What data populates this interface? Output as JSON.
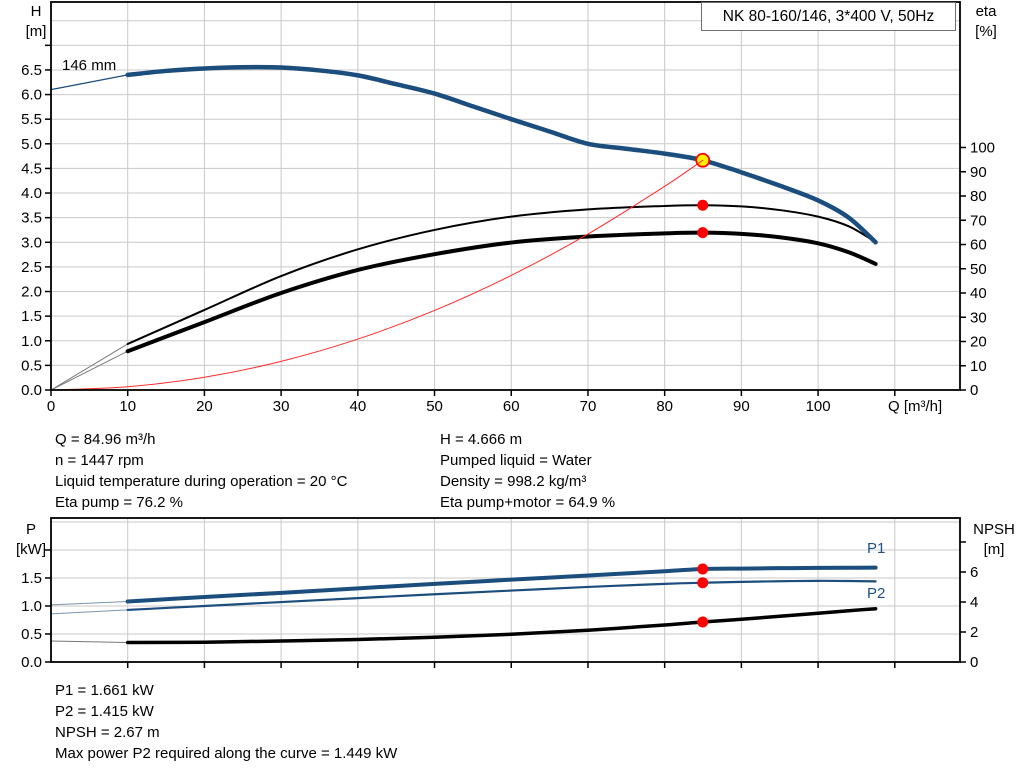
{
  "title_box": {
    "text": "NK 80-160/146, 3*400 V, 50Hz"
  },
  "impeller_label": "146 mm",
  "colors": {
    "curve_blue": "#1b4d7d",
    "label_blue": "#215081",
    "grid": "#c9c9c9",
    "axis": "#000000",
    "red": "#ff0000",
    "yellow": "#ffee00",
    "lead_gray": "#7a7a7a",
    "lead_blue": "#7d93ad"
  },
  "operating_point": {
    "left": [
      "Q = 84.96 m³/h",
      "n = 1447 rpm",
      "Liquid temperature during operation = 20 °C",
      "Eta pump = 76.2 %"
    ],
    "right": [
      "H = 4.666 m",
      "Pumped liquid = Water",
      "Density = 998.2 kg/m³",
      "Eta pump+motor = 64.9 %"
    ]
  },
  "bottom_text": [
    "P1 = 1.661 kW",
    "P2 = 1.415 kW",
    "NPSH = 2.67 m",
    "Max power P2 required along the curve = 1.449 kW"
  ],
  "curve_labels": {
    "p1": "P1",
    "p2": "P2"
  },
  "chart_data": [
    {
      "id": "qh-eta-chart",
      "type": "line",
      "grid": true,
      "x_axis": {
        "label": "Q [m³/h]",
        "min": 0,
        "max": 118.5,
        "ticks": [
          {
            "v": 0,
            "t": "0"
          },
          {
            "v": 10,
            "t": "10"
          },
          {
            "v": 20,
            "t": "20"
          },
          {
            "v": 30,
            "t": "30"
          },
          {
            "v": 40,
            "t": "40"
          },
          {
            "v": 50,
            "t": "50"
          },
          {
            "v": 60,
            "t": "60"
          },
          {
            "v": 70,
            "t": "70"
          },
          {
            "v": 80,
            "t": "80"
          },
          {
            "v": 90,
            "t": "90"
          },
          {
            "v": 100,
            "t": "100"
          },
          {
            "v": 110,
            "t": ""
          }
        ]
      },
      "y_left": {
        "title_lines": [
          "H",
          "[m]"
        ],
        "min": 0,
        "max": 7.88,
        "ticks": [
          {
            "v": 0,
            "t": "0.0"
          },
          {
            "v": 0.5,
            "t": "0.5"
          },
          {
            "v": 1,
            "t": "1.0"
          },
          {
            "v": 1.5,
            "t": "1.5"
          },
          {
            "v": 2,
            "t": "2.0"
          },
          {
            "v": 2.5,
            "t": "2.5"
          },
          {
            "v": 3,
            "t": "3.0"
          },
          {
            "v": 3.5,
            "t": "3.5"
          },
          {
            "v": 4,
            "t": "4.0"
          },
          {
            "v": 4.5,
            "t": "4.5"
          },
          {
            "v": 5,
            "t": "5.0"
          },
          {
            "v": 5.5,
            "t": "5.5"
          },
          {
            "v": 6,
            "t": "6.0"
          },
          {
            "v": 6.5,
            "t": "6.5"
          },
          {
            "v": 7,
            "t": ""
          }
        ],
        "grid": [
          0.5,
          1,
          1.5,
          2,
          2.5,
          3,
          3.5,
          4,
          4.5,
          5,
          5.5,
          6,
          6.5,
          7,
          7.5
        ]
      },
      "y_right": {
        "title_lines": [
          "eta",
          "[%]"
        ],
        "min": 0,
        "max": 160,
        "ticks": [
          {
            "v": 0,
            "t": "0"
          },
          {
            "v": 10,
            "t": "10"
          },
          {
            "v": 20,
            "t": "20"
          },
          {
            "v": 30,
            "t": "30"
          },
          {
            "v": 40,
            "t": "40"
          },
          {
            "v": 50,
            "t": "50"
          },
          {
            "v": 60,
            "t": "60"
          },
          {
            "v": 70,
            "t": "70"
          },
          {
            "v": 80,
            "t": "80"
          },
          {
            "v": 90,
            "t": "90"
          },
          {
            "v": 100,
            "t": "100"
          }
        ]
      },
      "series": [
        {
          "name": "eta-pump-lead",
          "axis": "right",
          "color": "#7a7a7a",
          "width": 1,
          "points": [
            [
              0,
              0
            ],
            [
              10,
              19
            ]
          ]
        },
        {
          "name": "eta-pump-motor-lead",
          "axis": "right",
          "color": "#7a7a7a",
          "width": 1,
          "points": [
            [
              0,
              0
            ],
            [
              10,
              16
            ]
          ]
        },
        {
          "name": "eta-pump-curve",
          "axis": "right",
          "color": "#000000",
          "width": 2,
          "points": [
            [
              10,
              19
            ],
            [
              20,
              33
            ],
            [
              30,
              47
            ],
            [
              40,
              58
            ],
            [
              50,
              66
            ],
            [
              60,
              71.5
            ],
            [
              70,
              74.5
            ],
            [
              80,
              75.9
            ],
            [
              84.96,
              76.2
            ],
            [
              90,
              75.7
            ],
            [
              95,
              74.2
            ],
            [
              100,
              71.5
            ],
            [
              104,
              67.5
            ],
            [
              107.5,
              61
            ]
          ]
        },
        {
          "name": "eta-pump-motor-curve",
          "axis": "right",
          "color": "#000000",
          "width": 4,
          "points": [
            [
              10,
              16
            ],
            [
              20,
              28
            ],
            [
              30,
              40
            ],
            [
              40,
              49.5
            ],
            [
              50,
              56
            ],
            [
              60,
              60.8
            ],
            [
              70,
              63.3
            ],
            [
              80,
              64.6
            ],
            [
              84.96,
              64.9
            ],
            [
              90,
              64.4
            ],
            [
              95,
              63
            ],
            [
              100,
              60.5
            ],
            [
              104,
              56.8
            ],
            [
              107.5,
              52
            ]
          ]
        },
        {
          "name": "head-curve-lead",
          "axis": "left",
          "color": "#1b4d7d",
          "width": 1.2,
          "points": [
            [
              0,
              6.1
            ],
            [
              10,
              6.4
            ]
          ]
        },
        {
          "name": "head-curve",
          "axis": "left",
          "color": "#1b4d7d",
          "width": 4.5,
          "points": [
            [
              10,
              6.4
            ],
            [
              15,
              6.48
            ],
            [
              20,
              6.53
            ],
            [
              25,
              6.556
            ],
            [
              30,
              6.55
            ],
            [
              35,
              6.49
            ],
            [
              40,
              6.39
            ],
            [
              45,
              6.21
            ],
            [
              50,
              6.02
            ],
            [
              55,
              5.76
            ],
            [
              60,
              5.5
            ],
            [
              65,
              5.25
            ],
            [
              70,
              5.0
            ],
            [
              75,
              4.9
            ],
            [
              80,
              4.8
            ],
            [
              84.96,
              4.666
            ],
            [
              90,
              4.42
            ],
            [
              95,
              4.15
            ],
            [
              100,
              3.85
            ],
            [
              104,
              3.5
            ],
            [
              107.5,
              3.0
            ]
          ]
        },
        {
          "name": "system-curve",
          "axis": "left",
          "color": "#ff2a2a",
          "width": 1,
          "overlay": true,
          "points": [
            [
              0,
              0
            ],
            [
              10,
              0.065
            ],
            [
              20,
              0.259
            ],
            [
              30,
              0.582
            ],
            [
              40,
              1.034
            ],
            [
              50,
              1.616
            ],
            [
              60,
              2.327
            ],
            [
              70,
              3.167
            ],
            [
              80,
              4.136
            ],
            [
              84.96,
              4.666
            ]
          ]
        }
      ],
      "markers": [
        {
          "name": "duty-point-marker",
          "axis": "left",
          "q": 84.96,
          "v": 4.666,
          "r": 6.5,
          "fill": "#ffee00",
          "stroke": "#ff0000",
          "sw": 1.8
        },
        {
          "name": "eta-pump-point-marker",
          "axis": "right",
          "q": 84.96,
          "v": 76.2,
          "r": 5.5,
          "fill": "#ff0000"
        },
        {
          "name": "eta-pump-motor-point-marker",
          "axis": "right",
          "q": 84.96,
          "v": 64.9,
          "r": 5.5,
          "fill": "#ff0000"
        }
      ]
    },
    {
      "id": "power-npsh-chart",
      "type": "line",
      "grid": true,
      "x_axis": {
        "label": "",
        "min": 0,
        "max": 118.5,
        "ticks": [
          {
            "v": 10,
            "t": ""
          },
          {
            "v": 20,
            "t": ""
          },
          {
            "v": 30,
            "t": ""
          },
          {
            "v": 40,
            "t": ""
          },
          {
            "v": 50,
            "t": ""
          },
          {
            "v": 60,
            "t": ""
          },
          {
            "v": 70,
            "t": ""
          },
          {
            "v": 80,
            "t": ""
          },
          {
            "v": 90,
            "t": ""
          },
          {
            "v": 100,
            "t": ""
          },
          {
            "v": 110,
            "t": ""
          }
        ]
      },
      "y_left": {
        "title_lines": [
          "P",
          "[kW]"
        ],
        "min": 0,
        "max": 2.571,
        "ticks": [
          {
            "v": 0,
            "t": "0.0"
          },
          {
            "v": 0.5,
            "t": "0.5"
          },
          {
            "v": 1,
            "t": "1.0"
          },
          {
            "v": 1.5,
            "t": "1.5"
          },
          {
            "v": 2,
            "t": ""
          }
        ],
        "grid": [
          0.5,
          1,
          1.5,
          2,
          2.5
        ]
      },
      "y_right": {
        "title_lines": [
          "NPSH",
          "[m]"
        ],
        "min": 0,
        "max": 9.6,
        "ticks": [
          {
            "v": 0,
            "t": "0"
          },
          {
            "v": 2,
            "t": "2"
          },
          {
            "v": 4,
            "t": "4"
          },
          {
            "v": 6,
            "t": "6"
          },
          {
            "v": 8,
            "t": ""
          }
        ]
      },
      "series": [
        {
          "name": "p1-curve-lead",
          "axis": "left",
          "color": "#7d93ad",
          "width": 1,
          "points": [
            [
              0,
              1.02
            ],
            [
              10,
              1.08
            ]
          ]
        },
        {
          "name": "p2-curve-lead",
          "axis": "left",
          "color": "#7d93ad",
          "width": 1,
          "points": [
            [
              0,
              0.86
            ],
            [
              10,
              0.93
            ]
          ]
        },
        {
          "name": "npsh-curve-lead",
          "axis": "right",
          "color": "#777777",
          "width": 1,
          "points": [
            [
              0,
              1.4
            ],
            [
              10,
              1.3
            ]
          ]
        },
        {
          "name": "p1-curve",
          "axis": "left",
          "color": "#1b4d7d",
          "width": 4,
          "points": [
            [
              10,
              1.08
            ],
            [
              20,
              1.16
            ],
            [
              30,
              1.235
            ],
            [
              40,
              1.315
            ],
            [
              50,
              1.395
            ],
            [
              60,
              1.47
            ],
            [
              70,
              1.545
            ],
            [
              80,
              1.62
            ],
            [
              84.96,
              1.661
            ],
            [
              90,
              1.668
            ],
            [
              95,
              1.675
            ],
            [
              100,
              1.68
            ],
            [
              104,
              1.683
            ],
            [
              107.5,
              1.684
            ]
          ]
        },
        {
          "name": "p2-curve",
          "axis": "left",
          "color": "#1b4d7d",
          "width": 2.2,
          "points": [
            [
              10,
              0.93
            ],
            [
              20,
              1.0
            ],
            [
              30,
              1.07
            ],
            [
              40,
              1.14
            ],
            [
              50,
              1.21
            ],
            [
              60,
              1.275
            ],
            [
              70,
              1.34
            ],
            [
              80,
              1.395
            ],
            [
              84.96,
              1.415
            ],
            [
              90,
              1.43
            ],
            [
              95,
              1.442
            ],
            [
              100,
              1.449
            ],
            [
              104,
              1.446
            ],
            [
              107.5,
              1.44
            ]
          ]
        },
        {
          "name": "npsh-curve",
          "axis": "right",
          "color": "#000000",
          "width": 3.5,
          "points": [
            [
              10,
              1.3
            ],
            [
              20,
              1.32
            ],
            [
              30,
              1.4
            ],
            [
              40,
              1.5
            ],
            [
              50,
              1.65
            ],
            [
              60,
              1.85
            ],
            [
              70,
              2.12
            ],
            [
              80,
              2.47
            ],
            [
              84.96,
              2.67
            ],
            [
              90,
              2.85
            ],
            [
              95,
              3.05
            ],
            [
              100,
              3.25
            ],
            [
              104,
              3.42
            ],
            [
              107.5,
              3.55
            ]
          ]
        }
      ],
      "markers": [
        {
          "name": "p1-point-marker",
          "axis": "left",
          "q": 84.96,
          "v": 1.661,
          "r": 5.5,
          "fill": "#ff0000"
        },
        {
          "name": "p2-point-marker",
          "axis": "left",
          "q": 84.96,
          "v": 1.415,
          "r": 5.5,
          "fill": "#ff0000"
        },
        {
          "name": "npsh-point-marker",
          "axis": "right",
          "q": 84.96,
          "v": 2.67,
          "r": 5.5,
          "fill": "#ff0000"
        }
      ]
    }
  ]
}
